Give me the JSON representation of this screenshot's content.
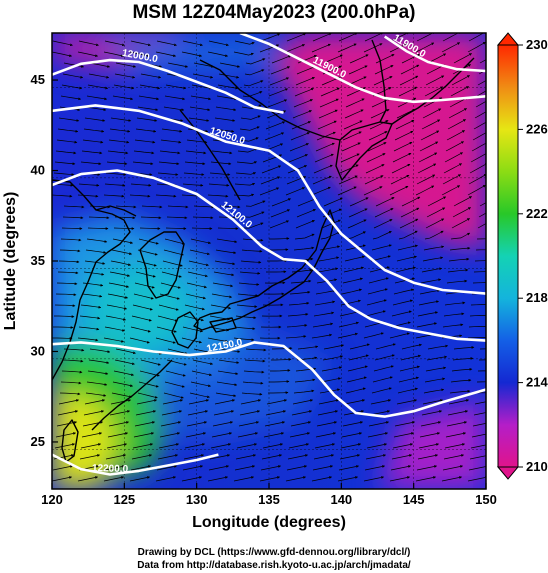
{
  "title": "MSM 12Z04May2023 (200.0hPa)",
  "xlabel": "Longitude (degrees)",
  "ylabel": "Latitude  (degrees)",
  "credits": {
    "drawing": "Drawing by DCL (https://www.gfd-dennou.org/library/dcl/)",
    "data": "Data from http://database.rish.kyoto-u.ac.jp/arch/jmadata/"
  },
  "colors": {
    "magenta": "#e0148c",
    "blue": "#1428d2",
    "cyan": "#14b4dc",
    "green": "#28c828",
    "yellow": "#e6e614",
    "red": "#ff2800"
  },
  "chart_data": {
    "type": "heatmap",
    "xlim": [
      120,
      150
    ],
    "ylim": [
      22.4,
      47.6
    ],
    "x_ticks": [
      120,
      125,
      130,
      135,
      140,
      145,
      150
    ],
    "y_ticks": [
      25,
      30,
      35,
      40,
      45
    ],
    "colorbar": {
      "range": [
        210,
        230
      ],
      "tick_labels": [
        "230",
        "226",
        "222",
        "218",
        "214",
        "210"
      ],
      "tick_values": [
        230,
        226,
        222,
        218,
        214,
        210
      ]
    },
    "contours": [
      {
        "label": "12000.0",
        "points": [
          [
            120,
            45.3
          ],
          [
            122,
            45.9
          ],
          [
            124,
            46.1
          ],
          [
            126,
            46.0
          ],
          [
            128,
            45.5
          ],
          [
            130,
            44.9
          ],
          [
            132,
            44.3
          ],
          [
            134,
            43.5
          ],
          [
            136,
            43.2
          ]
        ]
      },
      {
        "label": "11900.0",
        "points": [
          [
            133,
            47.6
          ],
          [
            135,
            47.0
          ],
          [
            137,
            46.2
          ],
          [
            139,
            45.4
          ],
          [
            141,
            44.6
          ],
          [
            143,
            44.0
          ],
          [
            145,
            43.8
          ],
          [
            147,
            43.9
          ],
          [
            150,
            44.1
          ]
        ]
      },
      {
        "label": "11900.0",
        "points": [
          [
            143,
            47.4
          ],
          [
            144.5,
            46.6
          ],
          [
            146,
            46.0
          ],
          [
            148,
            45.6
          ],
          [
            150,
            45.5
          ]
        ]
      },
      {
        "label": "12050.0",
        "points": [
          [
            120,
            43.3
          ],
          [
            123,
            43.6
          ],
          [
            126,
            43.3
          ],
          [
            129,
            42.6
          ],
          [
            132,
            41.6
          ],
          [
            135,
            41.1
          ],
          [
            137,
            40.0
          ],
          [
            138.5,
            38.0
          ],
          [
            140,
            36.5
          ],
          [
            141.5,
            35.5
          ],
          [
            143,
            34.5
          ],
          [
            145,
            33.8
          ],
          [
            147,
            33.4
          ],
          [
            150,
            33.2
          ]
        ]
      },
      {
        "label": "12100.0",
        "points": [
          [
            120,
            39.2
          ],
          [
            122,
            39.8
          ],
          [
            124.5,
            40.0
          ],
          [
            127,
            39.6
          ],
          [
            130,
            38.7
          ],
          [
            132.5,
            37.3
          ],
          [
            134.5,
            35.8
          ],
          [
            136,
            35.1
          ],
          [
            137.5,
            35.0
          ],
          [
            139,
            33.9
          ],
          [
            140.5,
            32.5
          ],
          [
            142,
            31.8
          ],
          [
            144,
            31.3
          ],
          [
            146,
            31.0
          ],
          [
            148,
            30.7
          ],
          [
            150,
            30.6
          ]
        ]
      },
      {
        "label": "12150.0",
        "points": [
          [
            120,
            30.4
          ],
          [
            122,
            30.5
          ],
          [
            124.5,
            30.3
          ],
          [
            127,
            30.0
          ],
          [
            129.5,
            29.8
          ],
          [
            132,
            30.0
          ],
          [
            134,
            30.5
          ],
          [
            136,
            30.3
          ],
          [
            138,
            29.0
          ],
          [
            139.5,
            27.6
          ],
          [
            141,
            26.6
          ],
          [
            143,
            26.4
          ],
          [
            145,
            26.7
          ],
          [
            147,
            27.2
          ],
          [
            150,
            27.9
          ]
        ]
      },
      {
        "label": "12200.0",
        "points": [
          [
            120,
            24.3
          ],
          [
            122,
            23.5
          ],
          [
            124,
            23.2
          ],
          [
            126,
            23.4
          ],
          [
            128,
            23.7
          ],
          [
            130,
            24.0
          ],
          [
            131.5,
            24.3
          ]
        ]
      }
    ]
  }
}
